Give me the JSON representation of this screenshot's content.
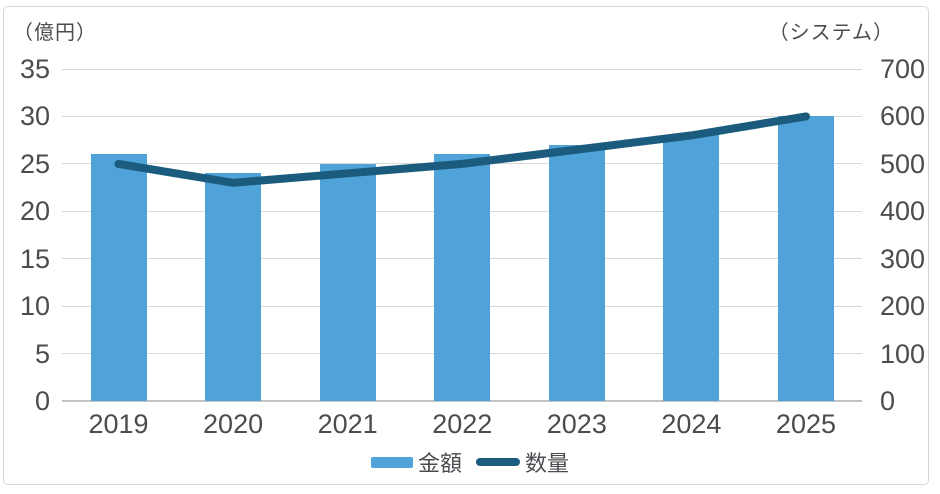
{
  "chart_data": {
    "type": "bar+line",
    "title": "",
    "categories": [
      "2019",
      "2020",
      "2021",
      "2022",
      "2023",
      "2024",
      "2025"
    ],
    "series": [
      {
        "name": "金額",
        "type": "bar",
        "axis": "left",
        "values": [
          26,
          24,
          25,
          26,
          27,
          28,
          30
        ]
      },
      {
        "name": "数量",
        "type": "line",
        "axis": "right",
        "values": [
          500,
          460,
          480,
          500,
          530,
          560,
          600
        ]
      }
    ],
    "left_axis": {
      "label": "（億円）",
      "min": 0,
      "max": 35,
      "step": 5,
      "ticks": [
        35,
        30,
        25,
        20,
        15,
        10,
        5,
        0
      ]
    },
    "right_axis": {
      "label": "（システム）",
      "min": 0,
      "max": 700,
      "step": 100,
      "ticks": [
        700,
        600,
        500,
        400,
        300,
        200,
        100,
        0
      ]
    },
    "grid": true,
    "legend_position": "bottom"
  },
  "colors": {
    "bar": "#4FA3D8",
    "line": "#1B5C7E",
    "grid": "#D9D9D9",
    "axis_line": "#C3C3C3",
    "text": "#4A4C50",
    "border": "#D8D8D8"
  }
}
